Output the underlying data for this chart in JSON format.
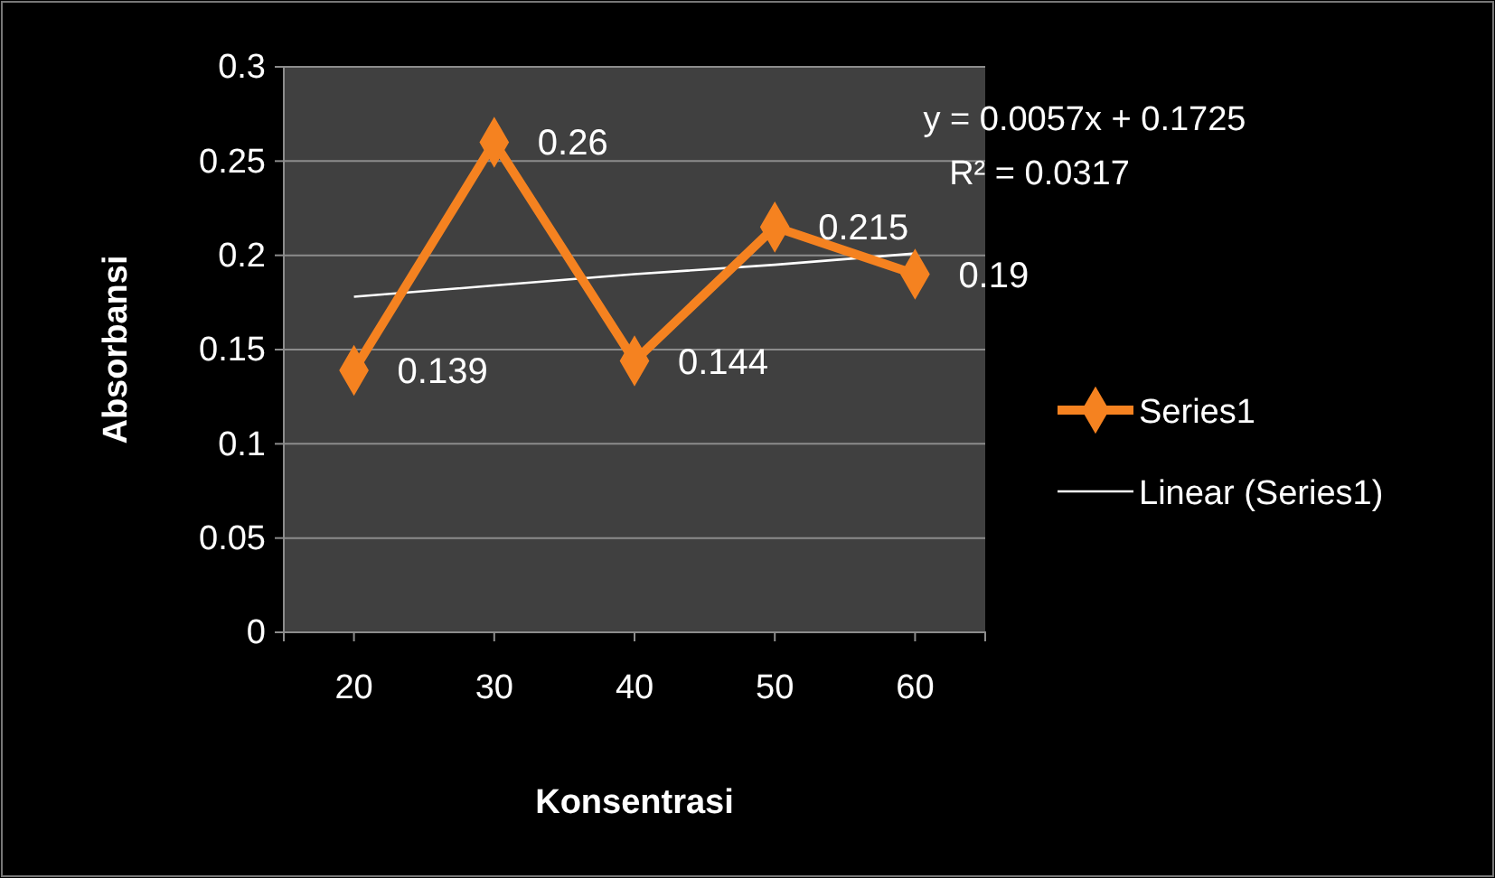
{
  "chart_data": {
    "type": "line",
    "xlabel": "Konsentrasi",
    "ylabel": "Absorbansi",
    "categories": [
      "20",
      "30",
      "40",
      "50",
      "60"
    ],
    "series": [
      {
        "name": "Series1",
        "color": "#f58220",
        "values": [
          0.139,
          0.26,
          0.144,
          0.215,
          0.19
        ],
        "marker": "diamond",
        "data_labels": true
      },
      {
        "name": "Linear (Series1)",
        "color": "#ffffff",
        "type": "line",
        "x": [
          "20",
          "30",
          "40",
          "50",
          "60"
        ],
        "values": [
          0.178,
          0.184,
          0.19,
          0.195,
          0.201
        ],
        "marker": "none"
      }
    ],
    "ylim": [
      0,
      0.3
    ],
    "yticks": [
      0,
      0.05,
      0.1,
      0.15,
      0.2,
      0.25,
      0.3
    ],
    "grid": "y",
    "legend": "right",
    "annotations": [
      "y = 0.0057x + 0.1725",
      "R² = 0.0317"
    ]
  }
}
